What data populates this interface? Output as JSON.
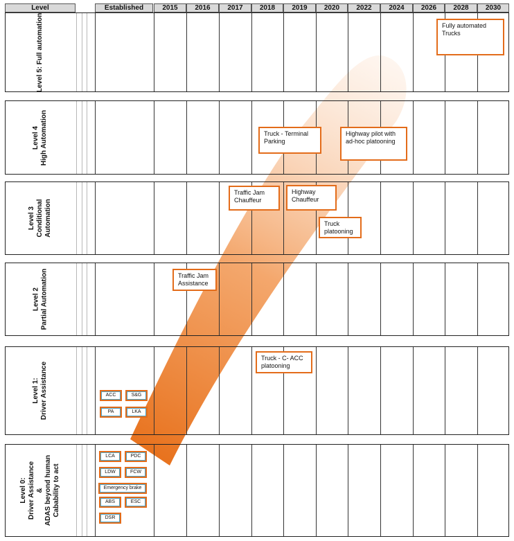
{
  "header": {
    "level_label": "Level",
    "established_label": "Established",
    "years": [
      "2015",
      "2016",
      "2017",
      "2018",
      "2019",
      "2020",
      "2022",
      "2024",
      "2026",
      "2028",
      "2030"
    ]
  },
  "levels": [
    {
      "lines": [
        "Level 5: Full automation"
      ]
    },
    {
      "lines": [
        "Level 4",
        "High Automation"
      ]
    },
    {
      "lines": [
        "Level 3",
        "Conditional",
        "Automation"
      ]
    },
    {
      "lines": [
        "Level 2",
        "Partial Automation"
      ]
    },
    {
      "lines": [
        "Level 1:",
        "Driver Assistance"
      ]
    },
    {
      "lines": [
        "Level 0:",
        "Driver Assistance",
        "&",
        "ADAS beyond human",
        "Cabability to act"
      ]
    }
  ],
  "functions": {
    "fully_automated_trucks": "Fully automated Trucks",
    "truck_terminal_parking": "Truck - Terminal Parking",
    "highway_pilot": "Highway pilot with ad-hoc platooning",
    "traffic_jam_chauffeur": "Traffic Jam Chauffeur",
    "highway_chauffeur": "Highway Chauffeur",
    "truck_platooning": "Truck platooning",
    "traffic_jam_assistance": "Traffic Jam Assistance",
    "truck_c_acc_platooning": "Truck - C- ACC platooning"
  },
  "established": {
    "level1": [
      "ACC",
      "S&G",
      "PA",
      "LKA"
    ],
    "level0": [
      "LCA",
      "PDC",
      "LDW",
      "FCW",
      "Emergency brake",
      "ABS",
      "ESC",
      "DSR"
    ]
  },
  "colors": {
    "box_border": "#e36c1a",
    "chip_inner_border": "#4aa3c8",
    "beam_orange": "#e8731f",
    "header_fill": "#d9d9d9"
  }
}
